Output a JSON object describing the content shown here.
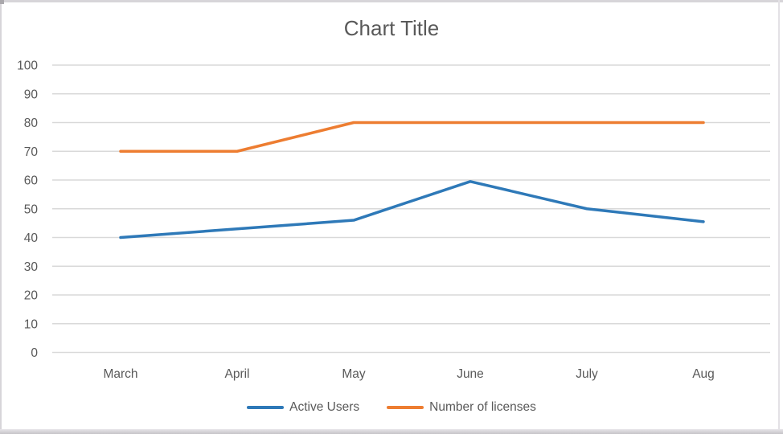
{
  "window": {
    "background": "#ffffff",
    "border_color": "#d7d5d9",
    "bottom_bar_color": "#c6c4c8"
  },
  "chart_data": {
    "type": "line",
    "title": "Chart Title",
    "title_color": "#595959",
    "categories": [
      "March",
      "April",
      "May",
      "June",
      "July",
      "Aug"
    ],
    "series": [
      {
        "name": "Active Users",
        "color": "#2E79B8",
        "values": [
          40,
          43,
          46,
          59.5,
          50,
          45.5
        ]
      },
      {
        "name": "Number of licenses",
        "color": "#ED7D31",
        "values": [
          70,
          70,
          80,
          80,
          80,
          80
        ]
      }
    ],
    "xlabel": "",
    "ylabel": "",
    "ylim": [
      0,
      100
    ],
    "yticks": [
      0,
      10,
      20,
      30,
      40,
      50,
      60,
      70,
      80,
      90,
      100
    ],
    "grid": true,
    "gridline_color": "#d9d9d9",
    "axis_label_color": "#595959",
    "legend_position": "bottom"
  }
}
